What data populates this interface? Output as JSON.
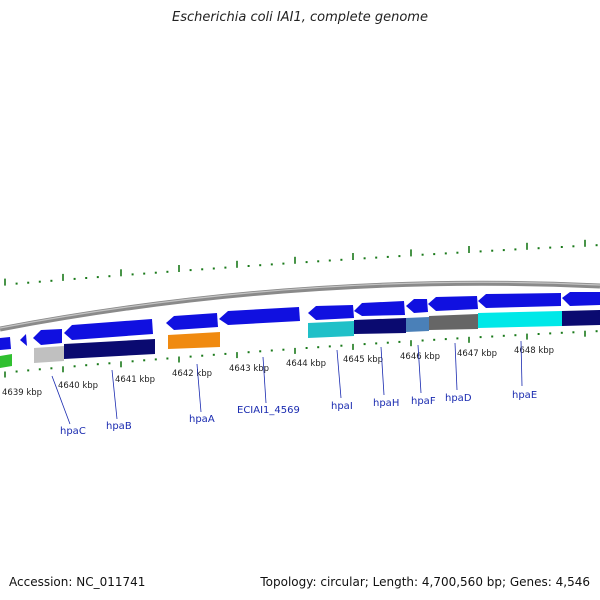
{
  "title": "Escherichia coli IAI1, complete genome",
  "footer": {
    "accession": "Accession: NC_011741",
    "summary": "Topology: circular; Length: 4,700,560 bp; Genes: 4,546"
  },
  "ruler": {
    "labels": [
      "4639 kbp",
      "4640 kbp",
      "4641 kbp",
      "4642 kbp",
      "4643 kbp",
      "4644 kbp",
      "4645 kbp",
      "4646 kbp",
      "4647 kbp",
      "4648 kbp"
    ]
  },
  "genes": [
    {
      "name": "hpaC"
    },
    {
      "name": "hpaB"
    },
    {
      "name": "hpaA"
    },
    {
      "name": "ECIAI1_4569"
    },
    {
      "name": "hpaI"
    },
    {
      "name": "hpaH"
    },
    {
      "name": "hpaF"
    },
    {
      "name": "hpaD"
    },
    {
      "name": "hpaE"
    }
  ],
  "colors": {
    "cds_blue": "#1010e0",
    "cds_navy": "#0a0a70",
    "orange": "#f08a10",
    "cyan": "#00e8e8",
    "teal": "#20c0c8",
    "steel": "#4a80b8",
    "gray": "#666666",
    "light_gray": "#c0c0c0",
    "green": "#30c030",
    "tick_green": "#1a7a1a",
    "backbone": "#8a8a8a"
  }
}
